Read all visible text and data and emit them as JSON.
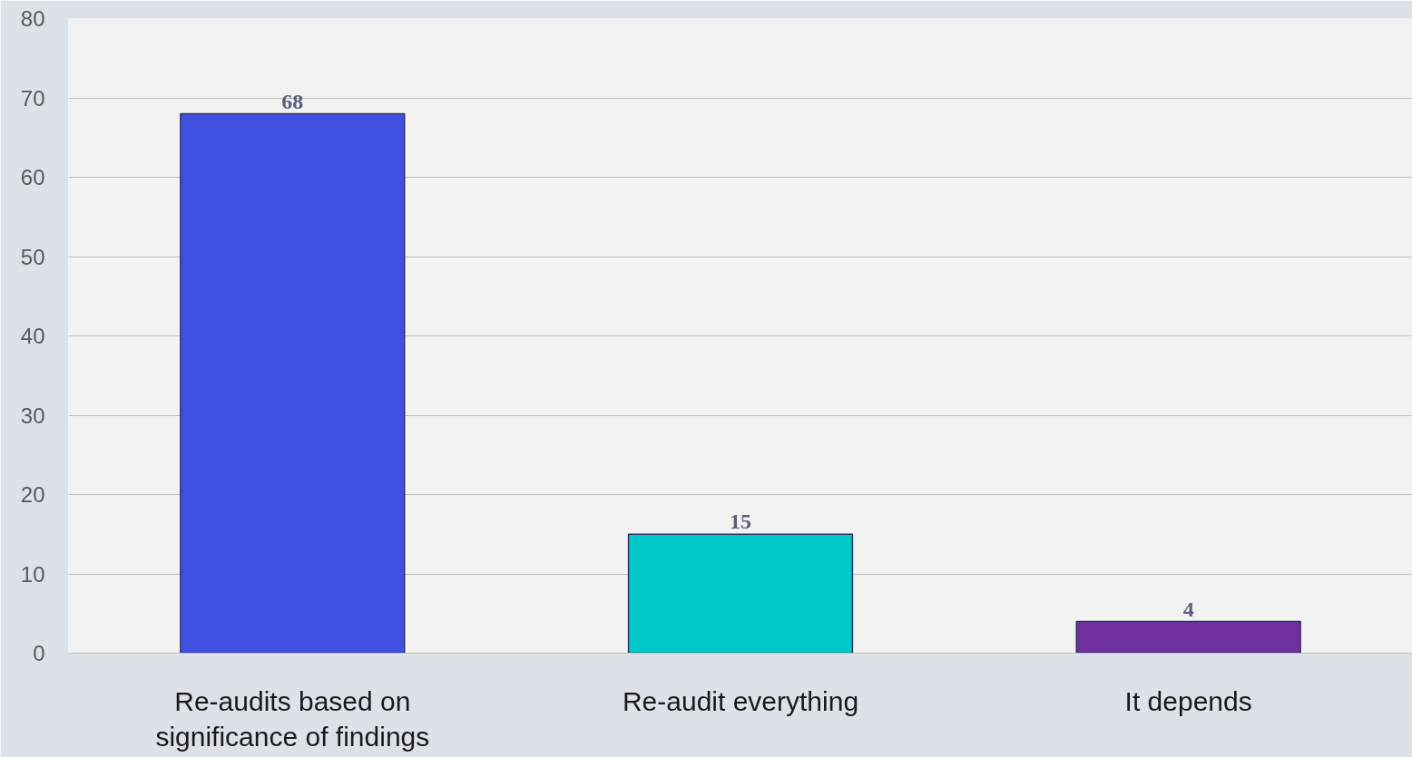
{
  "chart_data": {
    "type": "bar",
    "categories": [
      "Re-audits based on significance of findings",
      "Re-audit everything",
      "It depends"
    ],
    "values": [
      68,
      15,
      4
    ],
    "colors": [
      "#4050e0",
      "#00c8c8",
      "#7030a0"
    ],
    "ylim": [
      0,
      80
    ],
    "yticks": [
      0,
      10,
      20,
      30,
      40,
      50,
      60,
      70,
      80
    ],
    "grid": "y",
    "data_labels": true
  }
}
